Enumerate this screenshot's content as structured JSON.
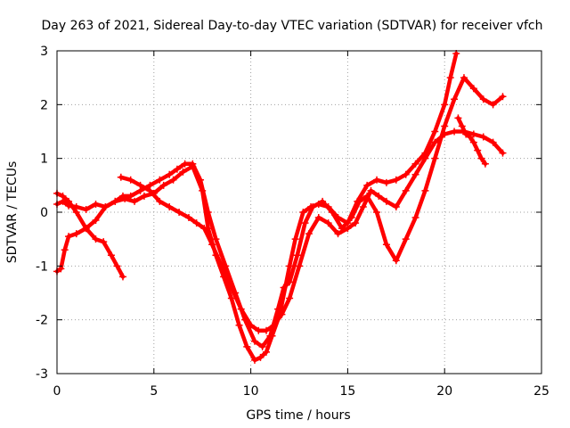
{
  "chart_data": {
    "type": "scatter",
    "title": "Day 263 of 2021, Sidereal Day-to-day VTEC variation (SDTVAR) for receiver vfch",
    "xlabel": "GPS time / hours",
    "ylabel": "SDTVAR / TECUs",
    "xlim": [
      0,
      25
    ],
    "ylim": [
      -3,
      3
    ],
    "xticks": [
      "0",
      "5",
      "10",
      "15",
      "20",
      "25"
    ],
    "yticks": [
      "-3",
      "-2",
      "-1",
      "0",
      "1",
      "2",
      "3"
    ],
    "grid": true,
    "marker": "+",
    "color": "#ff0000",
    "series": [
      {
        "x": [
          0,
          0.3,
          0.6,
          1.0,
          1.5,
          2.0,
          2.5,
          3.0,
          3.5,
          4.0,
          4.5,
          5.0,
          5.5,
          6.0,
          6.5,
          7.0,
          7.5,
          7.8,
          8.2,
          8.6,
          9.0,
          9.4,
          9.8,
          10.2,
          10.5,
          10.8,
          11.1,
          11.5,
          12.0,
          12.3,
          12.7,
          13.1,
          13.5,
          14.0,
          14.5,
          15.0,
          15.5,
          16.0,
          16.5,
          17.0,
          17.5,
          18.0,
          18.5,
          19.0,
          19.5,
          20.0,
          20.3,
          20.6
        ],
        "y": [
          0.15,
          0.2,
          0.12,
          0.1,
          0.05,
          0.15,
          0.1,
          0.2,
          0.25,
          0.2,
          0.3,
          0.35,
          0.5,
          0.6,
          0.75,
          0.85,
          0.4,
          -0.3,
          -0.8,
          -1.2,
          -1.6,
          -2.1,
          -2.5,
          -2.75,
          -2.7,
          -2.6,
          -2.3,
          -1.9,
          -1.0,
          -0.5,
          0.0,
          0.1,
          0.15,
          0.1,
          -0.1,
          -0.2,
          0.2,
          0.5,
          0.6,
          0.55,
          0.6,
          0.7,
          0.9,
          1.1,
          1.5,
          2.0,
          2.5,
          2.95
        ]
      },
      {
        "x": [
          0,
          0.3,
          0.6,
          1.0,
          1.5,
          2.0,
          2.4,
          2.8,
          3.1,
          3.4
        ],
        "y": [
          0.35,
          0.3,
          0.2,
          0.0,
          -0.3,
          -0.5,
          -0.55,
          -0.8,
          -1.0,
          -1.2
        ]
      },
      {
        "x": [
          0,
          0.2,
          0.4,
          0.6,
          1.0,
          1.5,
          2.0,
          2.5,
          3.0,
          3.4,
          3.8,
          4.3,
          4.8,
          5.3,
          5.8,
          6.2,
          6.6,
          7.0,
          7.4,
          7.8,
          8.2,
          8.7,
          9.2,
          9.7,
          10.2,
          10.6,
          11.0,
          11.4,
          11.7,
          12.0,
          12.4,
          12.8,
          13.2,
          13.7,
          14.2,
          14.7,
          15.2,
          15.6,
          16.0,
          16.5,
          17.0,
          17.5,
          18.0,
          18.5,
          19.0,
          19.5,
          20.0,
          20.5,
          21.0,
          21.5,
          22.0,
          22.5,
          23.0
        ],
        "y": [
          -1.1,
          -1.05,
          -0.7,
          -0.45,
          -0.4,
          -0.3,
          -0.15,
          0.1,
          0.2,
          0.3,
          0.3,
          0.4,
          0.5,
          0.6,
          0.7,
          0.8,
          0.9,
          0.9,
          0.6,
          0.0,
          -0.5,
          -1.0,
          -1.5,
          -2.0,
          -2.4,
          -2.5,
          -2.3,
          -1.8,
          -1.4,
          -1.3,
          -0.8,
          -0.2,
          0.1,
          0.2,
          0.0,
          -0.3,
          -0.1,
          0.2,
          0.3,
          0.0,
          -0.6,
          -0.9,
          -0.5,
          -0.1,
          0.4,
          1.0,
          1.6,
          2.1,
          2.5,
          2.3,
          2.1,
          2.0,
          2.15
        ]
      },
      {
        "x": [
          3.3,
          3.8,
          4.3,
          4.8,
          5.3,
          5.8,
          6.3,
          6.8,
          7.2,
          7.6,
          8.0,
          8.5,
          9.0,
          9.5,
          10.0,
          10.4,
          10.8,
          11.2,
          11.6,
          12.0,
          12.5,
          13.0,
          13.5,
          14.0,
          14.5,
          15.0,
          15.4,
          15.8,
          16.2,
          16.6,
          17.0,
          17.5,
          18.0,
          18.5,
          19.0,
          19.5,
          20.0,
          20.5,
          21.0,
          21.5,
          22.0,
          22.5,
          23.0
        ],
        "y": [
          0.65,
          0.6,
          0.5,
          0.4,
          0.2,
          0.1,
          0.0,
          -0.1,
          -0.2,
          -0.3,
          -0.6,
          -1.0,
          -1.4,
          -1.8,
          -2.1,
          -2.2,
          -2.2,
          -2.1,
          -1.9,
          -1.6,
          -1.0,
          -0.4,
          -0.1,
          -0.2,
          -0.4,
          -0.3,
          -0.2,
          0.1,
          0.4,
          0.3,
          0.2,
          0.1,
          0.4,
          0.7,
          1.0,
          1.3,
          1.45,
          1.5,
          1.5,
          1.45,
          1.4,
          1.3,
          1.1
        ]
      },
      {
        "x": [
          20.7,
          20.9,
          21.1,
          21.3,
          21.5,
          21.7,
          21.9,
          22.1
        ],
        "y": [
          1.75,
          1.6,
          1.45,
          1.4,
          1.3,
          1.15,
          1.0,
          0.9
        ]
      }
    ]
  }
}
